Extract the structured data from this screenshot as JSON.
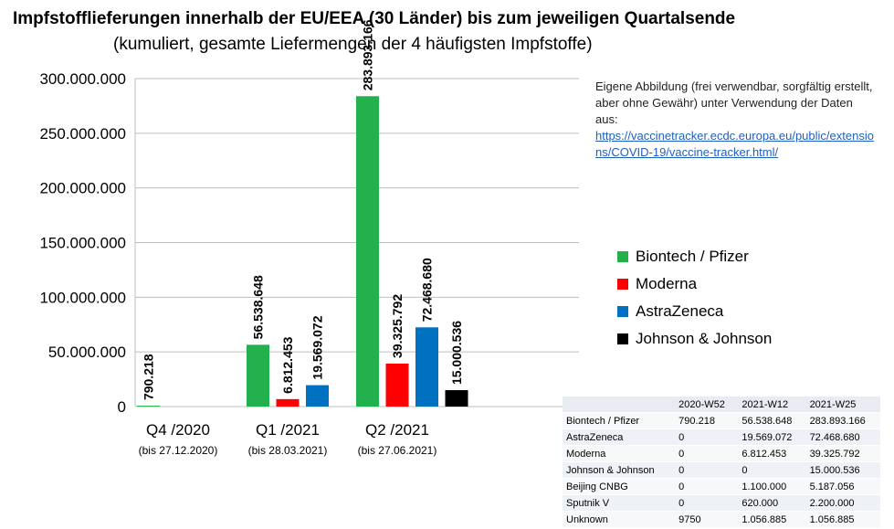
{
  "title": "Impfstofflieferungen innerhalb der EU/EEA (30 Länder) bis zum jeweiligen Quartalsende",
  "subtitle": "(kumuliert, gesamte Liefermengen der 4 häufigsten Impfstoffe)",
  "note": {
    "text": "Eigene Abbildung (frei verwendbar, sorgfältig erstellt, aber ohne Gewähr) unter Verwendung der Daten aus:",
    "link": "https://vaccinetracker.ecdc.europa.eu/public/extensions/COVID-19/vaccine-tracker.html/"
  },
  "chart_data": {
    "type": "bar",
    "title": "Impfstofflieferungen innerhalb der EU/EEA (30 Länder) bis zum jeweiligen Quartalsende",
    "categories": [
      "Q4 /2020",
      "Q1 /2021",
      "Q2 /2021"
    ],
    "category_sublabels": [
      "(bis 27.12.2020)",
      "(bis 28.03.2021)",
      "(bis 27.06.2021)"
    ],
    "series": [
      {
        "name": "Biontech / Pfizer",
        "color": "#22b14c",
        "values": [
          790218,
          56538648,
          283893166
        ],
        "labels": [
          "790.218",
          "56.538.648",
          "283.893.166"
        ]
      },
      {
        "name": "Moderna",
        "color": "#ff0000",
        "values": [
          0,
          6812453,
          39325792
        ],
        "labels": [
          "",
          "6.812.453",
          "39.325.792"
        ]
      },
      {
        "name": "AstraZeneca",
        "color": "#0070c0",
        "values": [
          0,
          19569072,
          72468680
        ],
        "labels": [
          "",
          "19.569.072",
          "72.468.680"
        ]
      },
      {
        "name": "Johnson & Johnson",
        "color": "#000000",
        "values": [
          0,
          0,
          15000536
        ],
        "labels": [
          "",
          "",
          "15.000.536"
        ]
      }
    ],
    "ylim": [
      0,
      300000000
    ],
    "yticks": [
      0,
      50000000,
      100000000,
      150000000,
      200000000,
      250000000,
      300000000
    ],
    "ytick_labels": [
      "0",
      "50.000.000",
      "100.000.000",
      "150.000.000",
      "200.000.000",
      "250.000.000",
      "300.000.000"
    ],
    "xlabel": "",
    "ylabel": "",
    "grid": true,
    "legend": "right"
  },
  "table": {
    "headers": [
      "",
      "2020-W52",
      "2021-W12",
      "2021-W25"
    ],
    "rows": [
      [
        "Biontech / Pfizer",
        "790.218",
        "56.538.648",
        "283.893.166"
      ],
      [
        "AstraZeneca",
        "0",
        "19.569.072",
        "72.468.680"
      ],
      [
        "Moderna",
        "0",
        "6.812.453",
        "39.325.792"
      ],
      [
        "Johnson & Johnson",
        "0",
        "0",
        "15.000.536"
      ],
      [
        "Beijing CNBG",
        "0",
        "1.100.000",
        "5.187.056"
      ],
      [
        "Sputnik V",
        "0",
        "620.000",
        "2.200.000"
      ],
      [
        "Unknown",
        "9750",
        "1.056.885",
        "1.056.885"
      ]
    ]
  }
}
